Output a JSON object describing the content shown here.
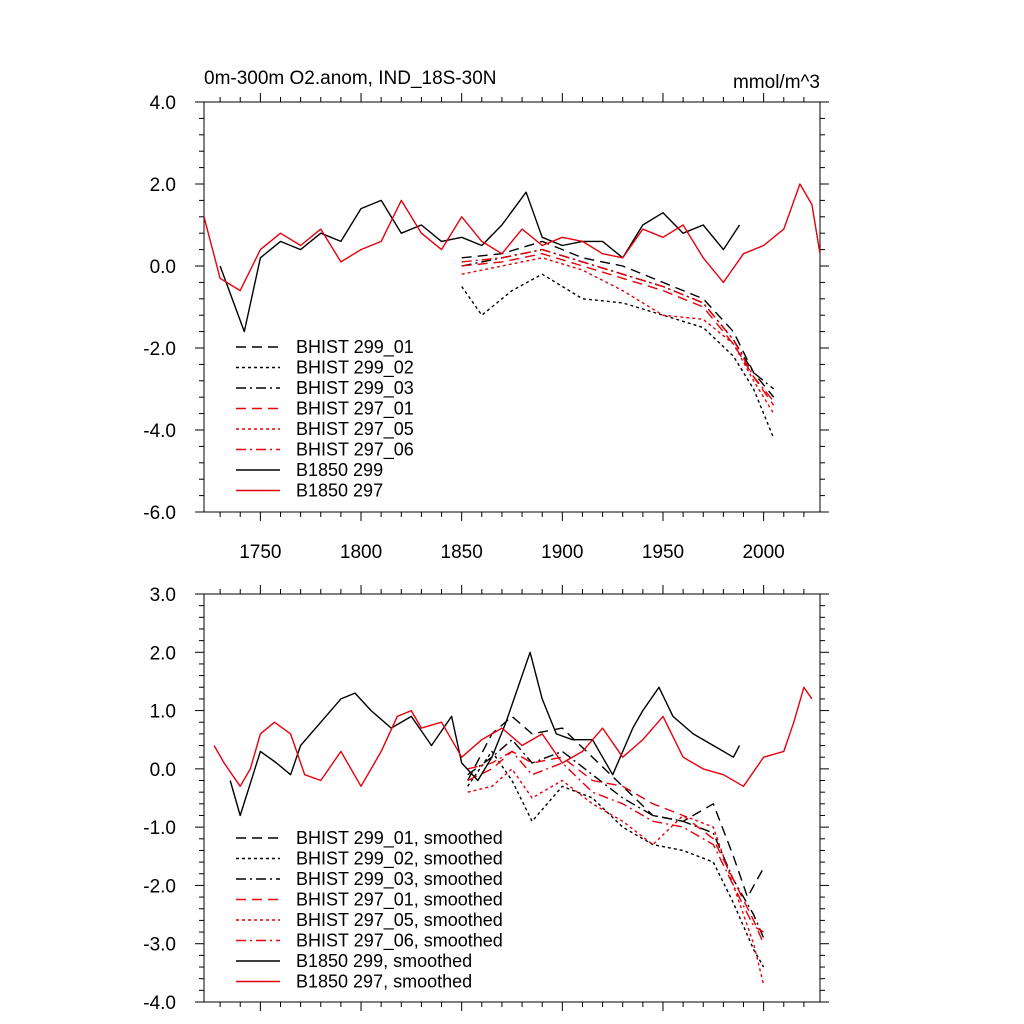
{
  "chart_data": [
    {
      "type": "line",
      "title": "0m-300m O2.anom, IND_18S-30N",
      "units": "mmol/m^3",
      "xlim": [
        1722,
        2028
      ],
      "ylim": [
        -6.0,
        4.0
      ],
      "xticks": [
        1750,
        1800,
        1850,
        1900,
        1950,
        2000
      ],
      "yticks": [
        -6.0,
        -4.0,
        -2.0,
        0.0,
        2.0,
        4.0
      ],
      "ytick_labels": [
        "-6.0",
        "-4.0",
        "-2.0",
        "0.0",
        "2.0",
        "4.0"
      ],
      "legend_position": "bottom-left",
      "series": [
        {
          "name": "BHIST 299_01",
          "color": "#000000",
          "dash": "dashed",
          "x": [
            1850,
            1870,
            1890,
            1910,
            1930,
            1950,
            1970,
            1985,
            1995,
            2005
          ],
          "y": [
            0.2,
            0.3,
            0.6,
            0.2,
            0.0,
            -0.4,
            -0.8,
            -1.6,
            -2.6,
            -3.2
          ]
        },
        {
          "name": "BHIST 299_02",
          "color": "#000000",
          "dash": "dotted",
          "x": [
            1850,
            1860,
            1875,
            1890,
            1910,
            1930,
            1950,
            1970,
            1985,
            1995,
            2005
          ],
          "y": [
            -0.5,
            -1.2,
            -0.6,
            -0.2,
            -0.8,
            -0.9,
            -1.2,
            -1.5,
            -2.2,
            -3.0,
            -4.2
          ]
        },
        {
          "name": "BHIST 299_03",
          "color": "#000000",
          "dash": "dashdot",
          "x": [
            1850,
            1870,
            1890,
            1910,
            1930,
            1950,
            1970,
            1985,
            1995,
            2005
          ],
          "y": [
            0.0,
            0.2,
            0.4,
            0.1,
            -0.2,
            -0.5,
            -0.9,
            -1.8,
            -2.6,
            -3.0
          ]
        },
        {
          "name": "BHIST 297_01",
          "color": "#e8000b",
          "dash": "dashed",
          "x": [
            1850,
            1870,
            1890,
            1910,
            1930,
            1950,
            1970,
            1985,
            1995,
            2005
          ],
          "y": [
            0.0,
            0.1,
            0.3,
            0.0,
            -0.3,
            -0.6,
            -1.0,
            -1.9,
            -2.7,
            -3.4
          ]
        },
        {
          "name": "BHIST 297_05",
          "color": "#e8000b",
          "dash": "dotted",
          "x": [
            1850,
            1870,
            1890,
            1910,
            1930,
            1950,
            1970,
            1985,
            1995,
            2005
          ],
          "y": [
            -0.2,
            0.0,
            0.2,
            -0.1,
            -0.6,
            -1.2,
            -1.3,
            -1.9,
            -2.8,
            -3.6
          ]
        },
        {
          "name": "BHIST 297_06",
          "color": "#e8000b",
          "dash": "dashdot",
          "x": [
            1850,
            1870,
            1890,
            1910,
            1930,
            1950,
            1970,
            1985,
            1995,
            2005
          ],
          "y": [
            0.1,
            0.2,
            0.4,
            0.1,
            -0.2,
            -0.5,
            -0.9,
            -1.8,
            -2.7,
            -3.3
          ]
        },
        {
          "name": "B1850 299",
          "color": "#000000",
          "dash": "solid",
          "x": [
            1730,
            1742,
            1750,
            1760,
            1770,
            1780,
            1790,
            1800,
            1810,
            1820,
            1830,
            1840,
            1850,
            1860,
            1870,
            1882,
            1890,
            1900,
            1910,
            1920,
            1930,
            1940,
            1950,
            1960,
            1970,
            1980,
            1988
          ],
          "y": [
            0.0,
            -1.6,
            0.2,
            0.6,
            0.4,
            0.8,
            0.6,
            1.4,
            1.6,
            0.8,
            1.0,
            0.6,
            0.7,
            0.5,
            1.0,
            1.8,
            0.7,
            0.5,
            0.6,
            0.6,
            0.2,
            1.0,
            1.3,
            0.8,
            1.0,
            0.4,
            1.0
          ]
        },
        {
          "name": "B1850 297",
          "color": "#e8000b",
          "dash": "solid",
          "x": [
            1722,
            1730,
            1740,
            1750,
            1760,
            1770,
            1780,
            1790,
            1800,
            1810,
            1820,
            1830,
            1840,
            1850,
            1860,
            1870,
            1880,
            1890,
            1900,
            1910,
            1920,
            1930,
            1940,
            1950,
            1960,
            1970,
            1980,
            1990,
            2000,
            2010,
            2018,
            2024,
            2028
          ],
          "y": [
            1.2,
            -0.3,
            -0.6,
            0.4,
            0.8,
            0.5,
            0.9,
            0.1,
            0.4,
            0.6,
            1.6,
            0.8,
            0.4,
            1.2,
            0.6,
            0.3,
            0.9,
            0.5,
            0.7,
            0.6,
            0.3,
            0.2,
            0.9,
            0.7,
            1.0,
            0.2,
            -0.4,
            0.3,
            0.5,
            0.9,
            2.0,
            1.5,
            0.3
          ]
        }
      ]
    },
    {
      "type": "line",
      "title": "",
      "xlim": [
        1722,
        2028
      ],
      "ylim": [
        -4.0,
        3.0
      ],
      "xticks": [
        1750,
        1800,
        1850,
        1900,
        1950,
        2000
      ],
      "yticks": [
        -4.0,
        -3.0,
        -2.0,
        -1.0,
        0.0,
        1.0,
        2.0,
        3.0
      ],
      "ytick_labels": [
        "-4.0",
        "-3.0",
        "-2.0",
        "-1.0",
        "0.0",
        "1.0",
        "2.0",
        "3.0"
      ],
      "legend_position": "bottom-left",
      "series": [
        {
          "name": "BHIST 299_01, smoothed",
          "color": "#000000",
          "dash": "dashed",
          "x": [
            1853,
            1865,
            1875,
            1885,
            1900,
            1915,
            1930,
            1945,
            1960,
            1975,
            1985,
            1992,
            2000
          ],
          "y": [
            -0.2,
            0.6,
            0.9,
            0.6,
            0.7,
            0.2,
            -0.3,
            -0.8,
            -0.9,
            -0.6,
            -1.5,
            -2.2,
            -1.7
          ]
        },
        {
          "name": "BHIST 299_02, smoothed",
          "color": "#000000",
          "dash": "dotted",
          "x": [
            1853,
            1865,
            1875,
            1885,
            1900,
            1915,
            1930,
            1945,
            1960,
            1975,
            1985,
            1995,
            2000
          ],
          "y": [
            -0.3,
            0.3,
            -0.2,
            -0.9,
            -0.3,
            -0.5,
            -1.0,
            -1.3,
            -1.4,
            -1.6,
            -2.3,
            -3.1,
            -3.4
          ]
        },
        {
          "name": "BHIST 299_03, smoothed",
          "color": "#000000",
          "dash": "dashdot",
          "x": [
            1853,
            1865,
            1875,
            1885,
            1900,
            1915,
            1930,
            1945,
            1960,
            1975,
            1985,
            1995,
            2000
          ],
          "y": [
            -0.1,
            0.2,
            0.5,
            0.1,
            0.3,
            -0.1,
            -0.5,
            -0.8,
            -0.9,
            -1.1,
            -1.9,
            -2.5,
            -2.9
          ]
        },
        {
          "name": "BHIST 297_01, smoothed",
          "color": "#e8000b",
          "dash": "dashed",
          "x": [
            1853,
            1865,
            1875,
            1885,
            1900,
            1915,
            1930,
            1945,
            1960,
            1975,
            1985,
            1995,
            2000
          ],
          "y": [
            -0.2,
            0.0,
            0.3,
            0.1,
            0.2,
            -0.2,
            -0.3,
            -0.6,
            -0.8,
            -1.2,
            -1.9,
            -2.6,
            -3.0
          ]
        },
        {
          "name": "BHIST 297_05, smoothed",
          "color": "#e8000b",
          "dash": "dotted",
          "x": [
            1853,
            1865,
            1875,
            1885,
            1900,
            1915,
            1930,
            1945,
            1960,
            1975,
            1985,
            1995,
            2000
          ],
          "y": [
            -0.4,
            -0.3,
            0.0,
            -0.5,
            -0.2,
            -0.6,
            -0.9,
            -1.3,
            -0.8,
            -1.0,
            -2.0,
            -3.0,
            -3.7
          ]
        },
        {
          "name": "BHIST 297_06, smoothed",
          "color": "#e8000b",
          "dash": "dashdot",
          "x": [
            1853,
            1865,
            1875,
            1885,
            1900,
            1915,
            1930,
            1945,
            1960,
            1975,
            1985,
            1995,
            2000
          ],
          "y": [
            0.0,
            0.1,
            0.3,
            -0.1,
            0.1,
            -0.4,
            -0.6,
            -0.9,
            -1.0,
            -1.3,
            -2.0,
            -2.7,
            -2.8
          ]
        },
        {
          "name": "B1850 299, smoothed",
          "color": "#000000",
          "dash": "solid",
          "x": [
            1735,
            1740,
            1750,
            1758,
            1765,
            1770,
            1780,
            1790,
            1797,
            1805,
            1815,
            1825,
            1835,
            1845,
            1850,
            1858,
            1865,
            1872,
            1877,
            1884,
            1890,
            1897,
            1905,
            1915,
            1925,
            1935,
            1940,
            1948,
            1955,
            1965,
            1975,
            1985,
            1988
          ],
          "y": [
            -0.2,
            -0.8,
            0.3,
            0.1,
            -0.1,
            0.4,
            0.8,
            1.2,
            1.3,
            1.0,
            0.7,
            0.9,
            0.4,
            0.9,
            0.1,
            -0.2,
            0.2,
            0.8,
            1.3,
            2.0,
            1.2,
            0.6,
            0.5,
            0.5,
            -0.1,
            0.7,
            1.0,
            1.4,
            0.9,
            0.6,
            0.4,
            0.2,
            0.4
          ]
        },
        {
          "name": "B1850 297, smoothed",
          "color": "#e8000b",
          "dash": "solid",
          "x": [
            1727,
            1732,
            1740,
            1745,
            1750,
            1757,
            1765,
            1772,
            1780,
            1790,
            1800,
            1810,
            1818,
            1825,
            1830,
            1840,
            1850,
            1860,
            1870,
            1880,
            1890,
            1900,
            1910,
            1920,
            1930,
            1940,
            1950,
            1960,
            1970,
            1980,
            1990,
            2000,
            2010,
            2015,
            2020,
            2024
          ],
          "y": [
            0.4,
            0.1,
            -0.3,
            0.0,
            0.6,
            0.8,
            0.6,
            -0.1,
            -0.2,
            0.3,
            -0.3,
            0.3,
            0.9,
            1.0,
            0.7,
            0.8,
            0.2,
            0.5,
            0.7,
            0.4,
            0.6,
            0.1,
            0.3,
            0.7,
            0.2,
            0.5,
            0.9,
            0.2,
            0.0,
            -0.1,
            -0.3,
            0.2,
            0.3,
            0.8,
            1.4,
            1.2
          ]
        }
      ]
    }
  ]
}
